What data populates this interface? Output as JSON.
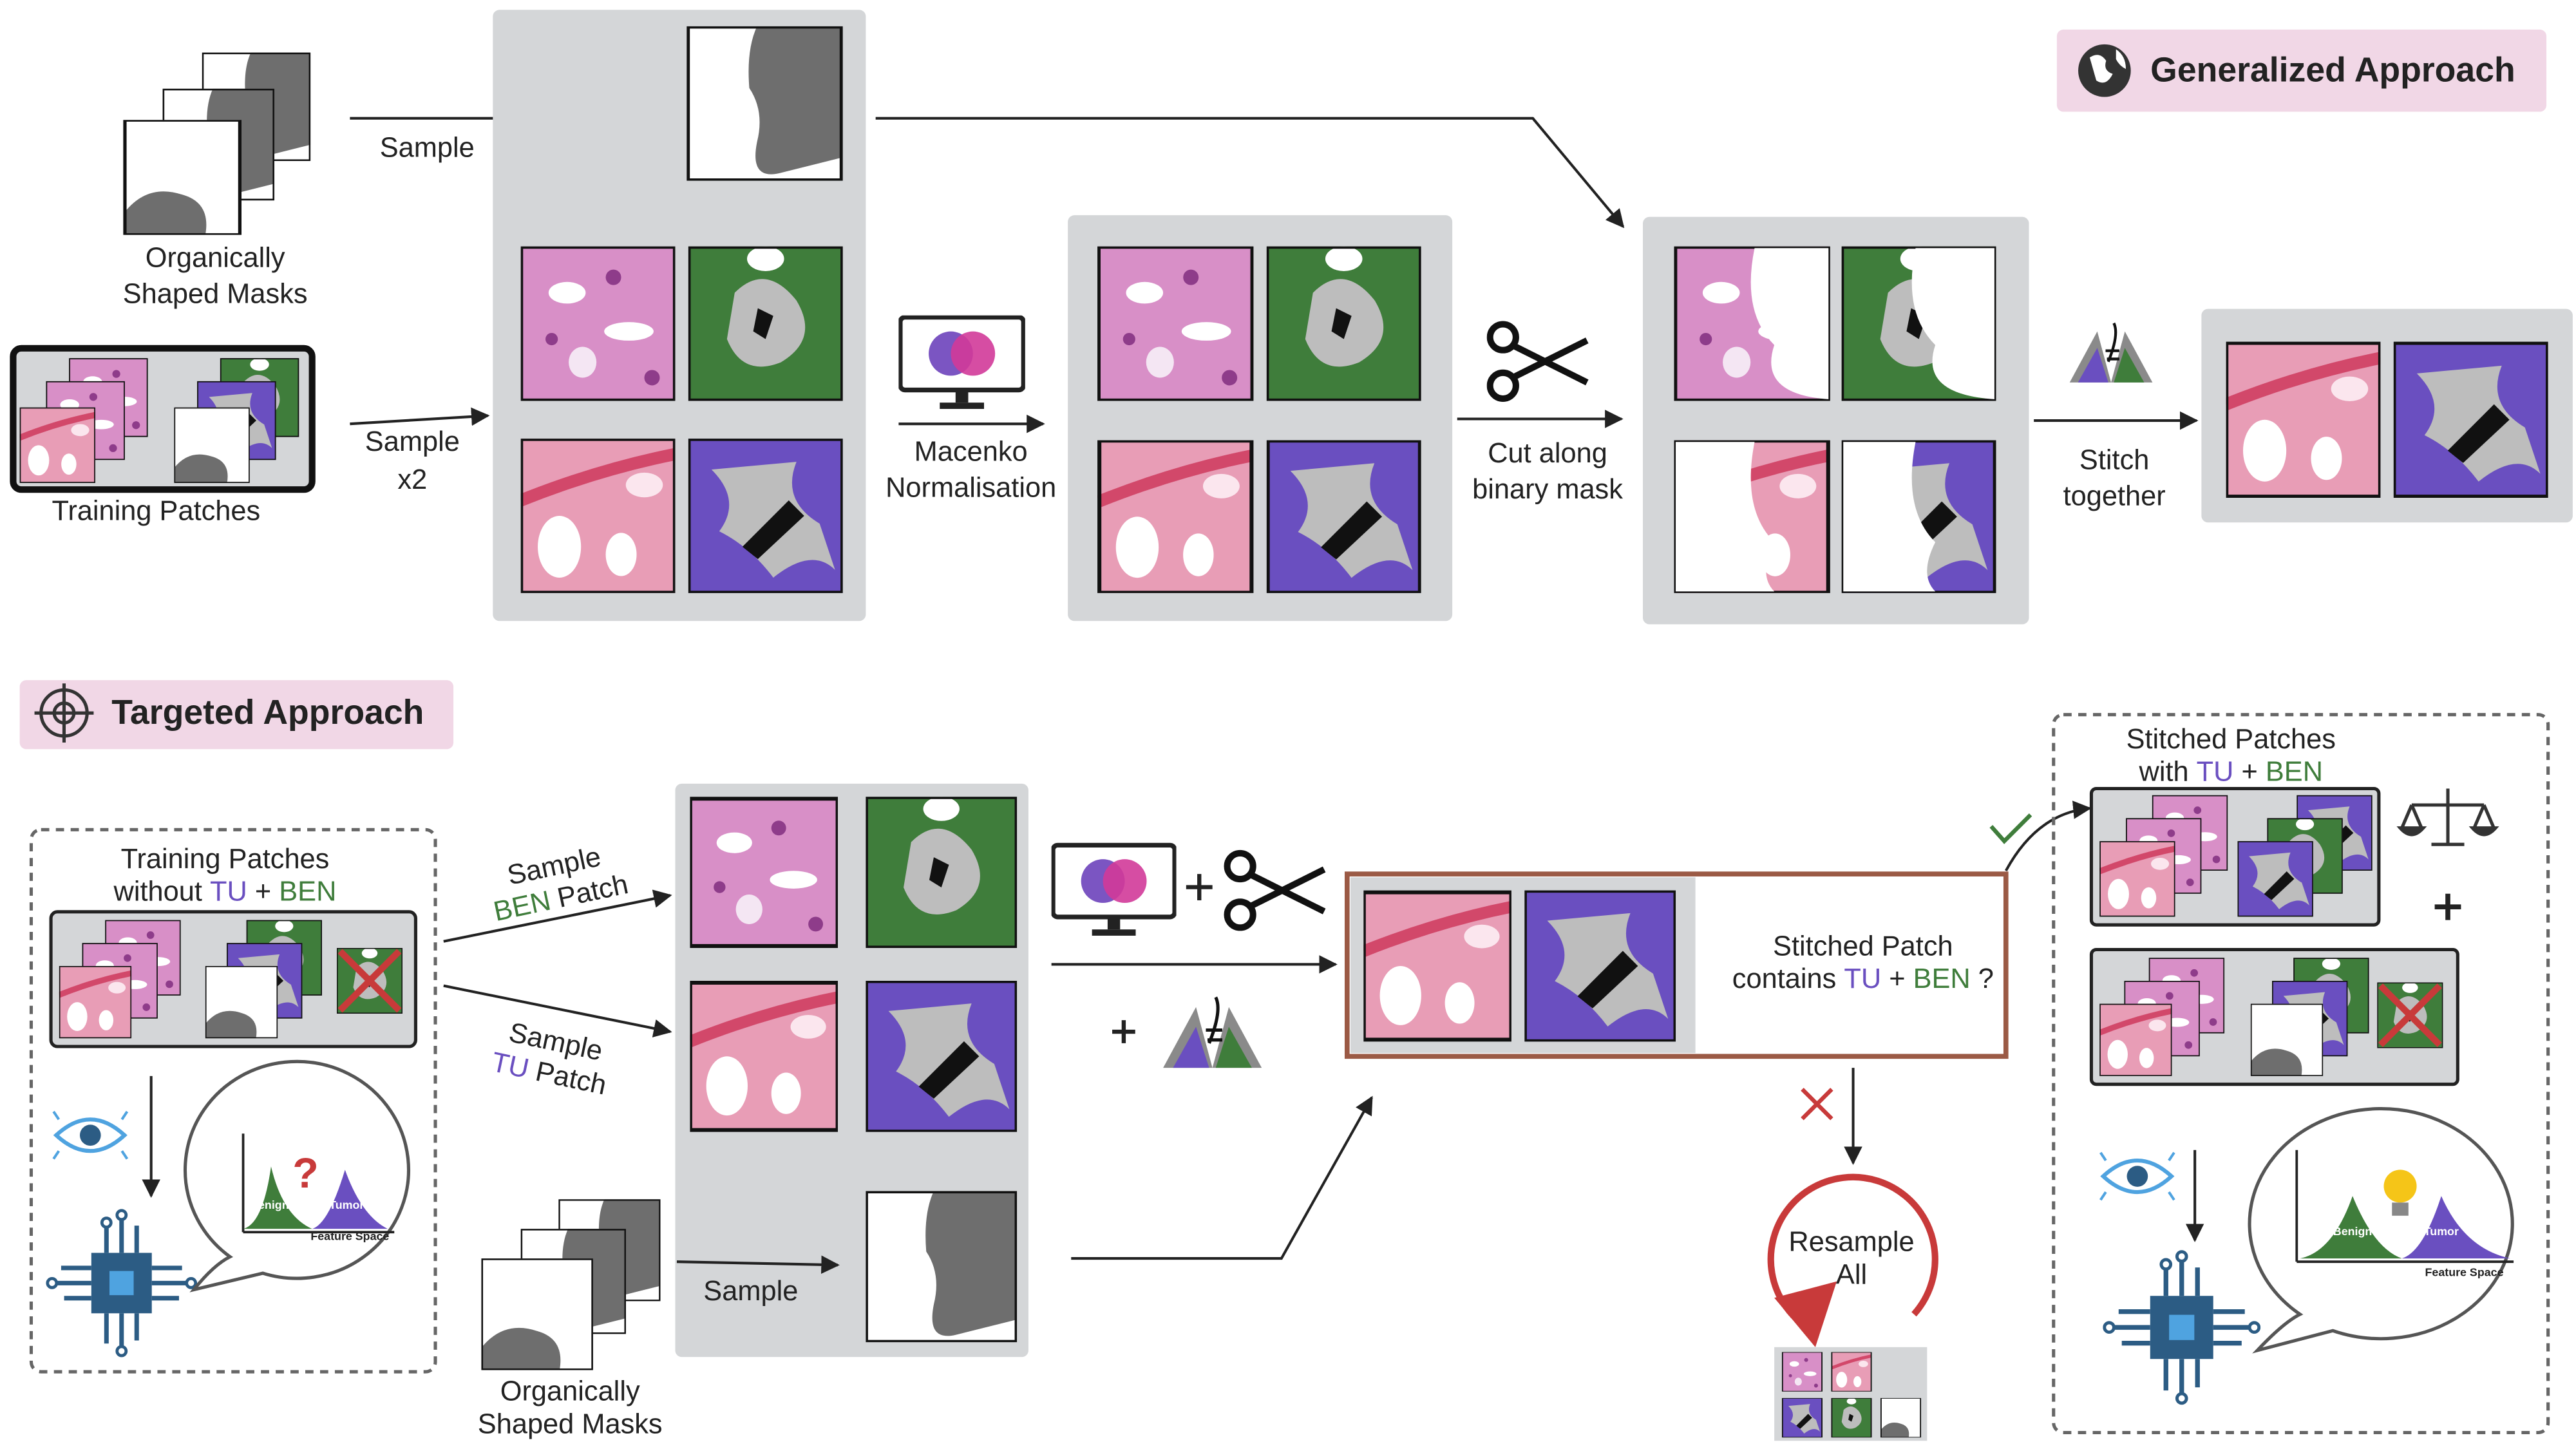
{
  "generalized": {
    "title": "Generalized Approach",
    "masks_label": [
      "Organically",
      "Shaped Masks"
    ],
    "sample_mask": "Sample",
    "training_label": "Training Patches",
    "sample_patches": [
      "Sample",
      "x2"
    ],
    "normalisation": [
      "Macenko",
      "Normalisation"
    ],
    "cut": [
      "Cut along",
      "binary mask"
    ],
    "stitch": [
      "Stitch",
      "together"
    ]
  },
  "targeted": {
    "title": "Targeted Approach",
    "training_label": {
      "line1": "Training Patches",
      "line2": [
        "without",
        "TU",
        "+",
        "BEN"
      ]
    },
    "graph1": {
      "question": "?",
      "benign": "Benign",
      "tumor": "Tumor",
      "axis": "Feature Space"
    },
    "sample_ben": {
      "line1": "Sample",
      "line2": [
        "BEN",
        "Patch"
      ]
    },
    "sample_tu": {
      "line1": "Sample",
      "line2": [
        "TU",
        "Patch"
      ]
    },
    "sample_mask": "Sample",
    "masks_label": [
      "Organically",
      "Shaped Masks"
    ],
    "check": {
      "line1": "Stitched Patch",
      "line2": [
        "contains",
        "TU",
        "+",
        "BEN",
        "?"
      ]
    },
    "resample": [
      "Resample",
      "All"
    ],
    "stitched": {
      "line1": "Stitched Patches",
      "line2": [
        "with",
        "TU",
        "+",
        "BEN"
      ]
    },
    "graph2": {
      "benign": "Benign",
      "tumor": "Tumor",
      "axis": "Feature Space"
    }
  }
}
